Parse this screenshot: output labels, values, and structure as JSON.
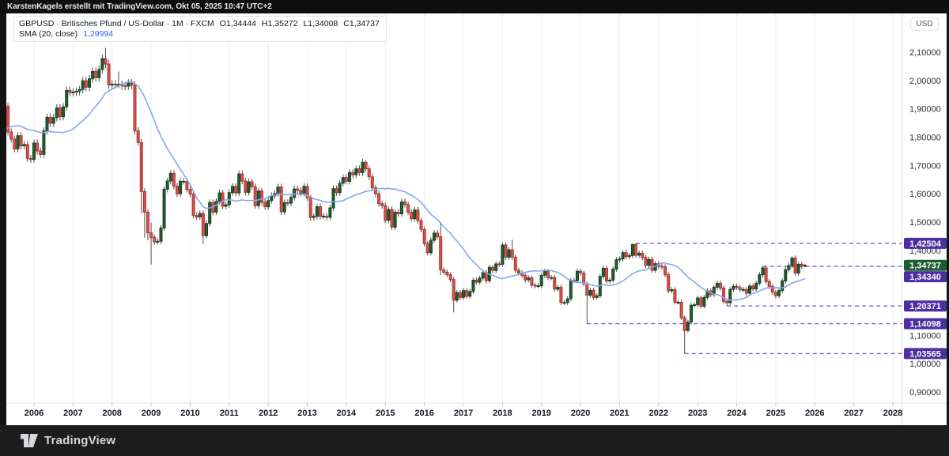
{
  "topbar": {
    "attribution": "KarstenKagels erstellt mit TradingView.com, Okt 05, 2025 10:47 UTC+2"
  },
  "legend": {
    "symbol_line": "GBPUSD · Britisches Pfund / US-Dollar · 1M · FXCM",
    "open": "O1,34444",
    "high": "H1,35272",
    "low": "L1,34008",
    "close": "C1,34737",
    "indicator_name": "SMA (20, close)",
    "indicator_value": "1,29994"
  },
  "price_axis": {
    "currency": "USD",
    "ticks": [
      {
        "value": 2.1,
        "label": "2,10000"
      },
      {
        "value": 2.0,
        "label": "2,00000"
      },
      {
        "value": 1.9,
        "label": "1,90000"
      },
      {
        "value": 1.8,
        "label": "1,80000"
      },
      {
        "value": 1.7,
        "label": "1,70000"
      },
      {
        "value": 1.6,
        "label": "1,60000"
      },
      {
        "value": 1.5,
        "label": "1,50000"
      },
      {
        "value": 1.4,
        "label": "1,40000"
      },
      {
        "value": 1.1,
        "label": "1,10000"
      },
      {
        "value": 1.0,
        "label": "1,00000"
      },
      {
        "value": 0.9,
        "label": "0,90000"
      }
    ],
    "badges": [
      {
        "value": 1.42504,
        "label": "1,42504",
        "kind": "level",
        "offset": 0
      },
      {
        "value": 1.34737,
        "label": "1,34737",
        "kind": "last-price",
        "offset": 0
      },
      {
        "value": 1.3434,
        "label": "1,34340",
        "kind": "level",
        "offset": 13
      },
      {
        "value": 1.20371,
        "label": "1,20371",
        "kind": "level",
        "offset": 0
      },
      {
        "value": 1.14098,
        "label": "1,14098",
        "kind": "level",
        "offset": 0
      },
      {
        "value": 1.03565,
        "label": "1,03565",
        "kind": "level",
        "offset": 0
      }
    ]
  },
  "time_axis": {
    "years": [
      2006,
      2007,
      2008,
      2009,
      2010,
      2011,
      2012,
      2013,
      2014,
      2015,
      2016,
      2017,
      2018,
      2019,
      2020,
      2021,
      2022,
      2023,
      2024,
      2025,
      2026,
      2027,
      2028
    ]
  },
  "footer": {
    "brand": "TradingView"
  },
  "colors": {
    "up": "#245e33",
    "up_border": "#163f20",
    "down": "#e0514a",
    "down_border": "#a03730",
    "wick": "#4f4f4f",
    "sma": "#85a7ef",
    "grid": "#ecedf1",
    "axis_tick_mark": "#b9bcc5",
    "axis_border": "#e0e3eb",
    "axis_text": "#2a2e39",
    "year_text": "#131722",
    "level_line": "#7a5fd0",
    "level_badge": "#4e2ea2",
    "last_price_badge": "#1b5e2d",
    "indicator_value_blue": "#2962ff"
  },
  "chart_data": {
    "type": "candlestick",
    "symbol": "GBPUSD",
    "description": "Britisches Pfund / US-Dollar",
    "timeframe": "1M",
    "exchange": "FXCM",
    "current": {
      "open": 1.34444,
      "high": 1.35272,
      "low": 1.34008,
      "close": 1.34737
    },
    "sma": {
      "period": 20,
      "source": "close",
      "last_value": 1.29994
    },
    "start_month": "2005-04",
    "open_first": 1.89,
    "closes": [
      1.909,
      1.818,
      1.793,
      1.758,
      1.805,
      1.769,
      1.774,
      1.725,
      1.721,
      1.779,
      1.751,
      1.739,
      1.822,
      1.87,
      1.849,
      1.869,
      1.903,
      1.872,
      1.907,
      1.965,
      1.958,
      1.959,
      1.962,
      1.968,
      1.999,
      1.976,
      2.006,
      2.032,
      2.01,
      2.039,
      2.077,
      2.058,
      1.984,
      1.987,
      1.986,
      1.986,
      1.981,
      1.98,
      1.991,
      1.983,
      1.822,
      1.781,
      1.608,
      1.535,
      1.462,
      1.446,
      1.43,
      1.432,
      1.479,
      1.616,
      1.645,
      1.672,
      1.627,
      1.6,
      1.644,
      1.644,
      1.615,
      1.599,
      1.523,
      1.518,
      1.53,
      1.452,
      1.495,
      1.569,
      1.535,
      1.573,
      1.603,
      1.556,
      1.561,
      1.604,
      1.626,
      1.603,
      1.67,
      1.645,
      1.605,
      1.642,
      1.625,
      1.558,
      1.61,
      1.57,
      1.554,
      1.576,
      1.593,
      1.601,
      1.624,
      1.536,
      1.569,
      1.567,
      1.587,
      1.617,
      1.612,
      1.602,
      1.626,
      1.585,
      1.516,
      1.52,
      1.554,
      1.52,
      1.521,
      1.517,
      1.55,
      1.618,
      1.604,
      1.637,
      1.657,
      1.644,
      1.675,
      1.667,
      1.688,
      1.675,
      1.711,
      1.688,
      1.66,
      1.621,
      1.6,
      1.565,
      1.558,
      1.506,
      1.544,
      1.482,
      1.535,
      1.529,
      1.571,
      1.562,
      1.535,
      1.512,
      1.543,
      1.505,
      1.474,
      1.424,
      1.392,
      1.436,
      1.461,
      1.448,
      1.331,
      1.323,
      1.314,
      1.297,
      1.224,
      1.251,
      1.234,
      1.258,
      1.238,
      1.255,
      1.295,
      1.288,
      1.302,
      1.321,
      1.293,
      1.34,
      1.329,
      1.352,
      1.351,
      1.419,
      1.376,
      1.402,
      1.376,
      1.33,
      1.32,
      1.312,
      1.296,
      1.303,
      1.277,
      1.275,
      1.275,
      1.312,
      1.326,
      1.304,
      1.304,
      1.263,
      1.27,
      1.216,
      1.216,
      1.229,
      1.294,
      1.293,
      1.326,
      1.32,
      1.282,
      1.242,
      1.259,
      1.234,
      1.24,
      1.308,
      1.337,
      1.292,
      1.295,
      1.334,
      1.367,
      1.37,
      1.392,
      1.378,
      1.382,
      1.421,
      1.383,
      1.39,
      1.375,
      1.347,
      1.368,
      1.33,
      1.353,
      1.344,
      1.342,
      1.314,
      1.257,
      1.261,
      1.217,
      1.217,
      1.162,
      1.117,
      1.147,
      1.206,
      1.208,
      1.232,
      1.203,
      1.234,
      1.257,
      1.244,
      1.27,
      1.284,
      1.267,
      1.22,
      1.215,
      1.262,
      1.273,
      1.269,
      1.262,
      1.262,
      1.249,
      1.274,
      1.264,
      1.284,
      1.314,
      1.338,
      1.29,
      1.273,
      1.252,
      1.24,
      1.258,
      1.292,
      1.332,
      1.346,
      1.373,
      1.32,
      1.351,
      1.344,
      1.34737
    ],
    "wick_overrides": {
      "31": {
        "h": 2.116
      },
      "35": {
        "h": 2.032
      },
      "42": {
        "l": 1.53
      },
      "43": {
        "l": 1.445
      },
      "44": {
        "l": 1.435
      },
      "45": {
        "l": 1.35,
        "h": 1.498
      },
      "61": {
        "l": 1.423
      },
      "111": {
        "h": 1.7192
      },
      "134": {
        "h": 1.5,
        "l": 1.312
      },
      "138": {
        "l": 1.181
      },
      "156": {
        "h": 1.4377
      },
      "179": {
        "l": 1.14098
      },
      "193": {
        "h": 1.424
      },
      "194": {
        "h": 1.42504
      },
      "209": {
        "l": 1.03565
      },
      "222": {
        "l": 1.20371
      },
      "233": {
        "h": 1.3434
      },
      "242": {
        "h": 1.3789
      },
      "246": {
        "o": 1.34444,
        "h": 1.35272,
        "l": 1.34008
      }
    },
    "pre_closes_for_sma": [
      1.66,
      1.7,
      1.72,
      1.79,
      1.82,
      1.86,
      1.84,
      1.77,
      1.83,
      1.81,
      1.82,
      1.8,
      1.81,
      1.84,
      1.91,
      1.92,
      1.88,
      1.92,
      1.89
    ],
    "levels": [
      {
        "price": 1.42504,
        "from_month": "2021-06",
        "from_index": 194
      },
      {
        "price": 1.3434,
        "from_month": "2024-09",
        "from_index": 233
      },
      {
        "price": 1.20371,
        "from_month": "2023-10",
        "from_index": 222
      },
      {
        "price": 1.14098,
        "from_month": "2020-03",
        "from_index": 179
      },
      {
        "price": 1.03565,
        "from_month": "2022-09",
        "from_index": 209
      }
    ],
    "y_axis": {
      "min_visible": 0.861,
      "max_visible": 2.237,
      "tick_step": 0.1
    },
    "x_axis": {
      "first_year_tick": 2006,
      "last_year_tick": 2028
    }
  }
}
